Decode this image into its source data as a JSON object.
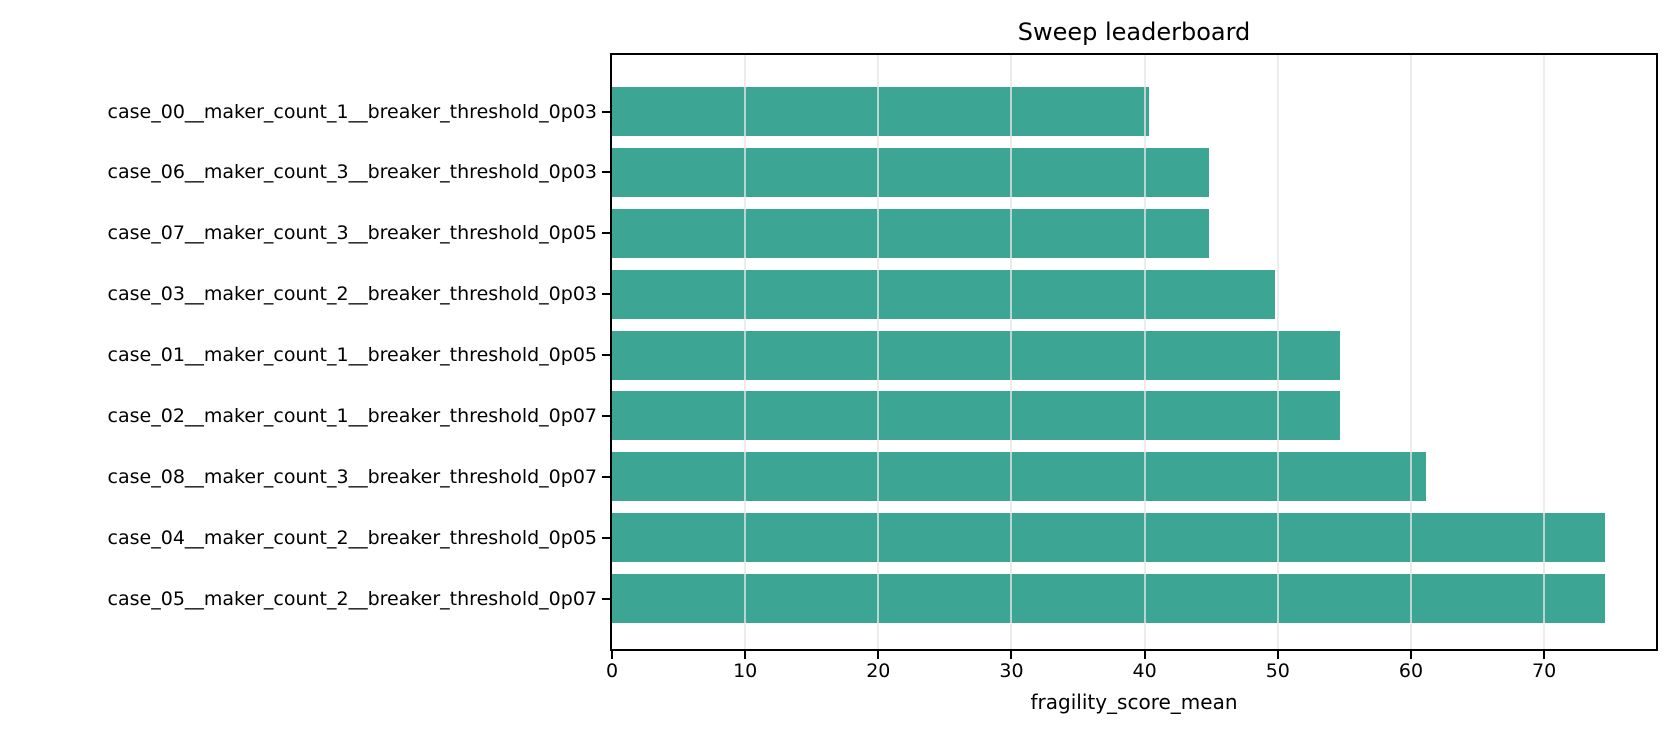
{
  "chart_data": {
    "type": "bar",
    "orientation": "horizontal",
    "title": "Sweep leaderboard",
    "xlabel": "fragility_score_mean",
    "ylabel": "",
    "categories": [
      "case_00__maker_count_1__breaker_threshold_0p03",
      "case_06__maker_count_3__breaker_threshold_0p03",
      "case_07__maker_count_3__breaker_threshold_0p05",
      "case_03__maker_count_2__breaker_threshold_0p03",
      "case_01__maker_count_1__breaker_threshold_0p05",
      "case_02__maker_count_1__breaker_threshold_0p07",
      "case_08__maker_count_3__breaker_threshold_0p07",
      "case_04__maker_count_2__breaker_threshold_0p05",
      "case_05__maker_count_2__breaker_threshold_0p07"
    ],
    "values": [
      40.3,
      44.8,
      44.8,
      49.8,
      54.7,
      54.7,
      61.1,
      74.6,
      74.6
    ],
    "xticks": [
      0,
      10,
      20,
      30,
      40,
      50,
      60,
      70
    ],
    "xlim": [
      0,
      78.4
    ],
    "grid": true,
    "grid_axis": "x",
    "legend_position": "none",
    "bar_color": "#3CA594",
    "grid_color": "#E6E6E6",
    "axis_color": "#000000",
    "text_color": "#000000",
    "background_color": "#FFFFFF"
  }
}
